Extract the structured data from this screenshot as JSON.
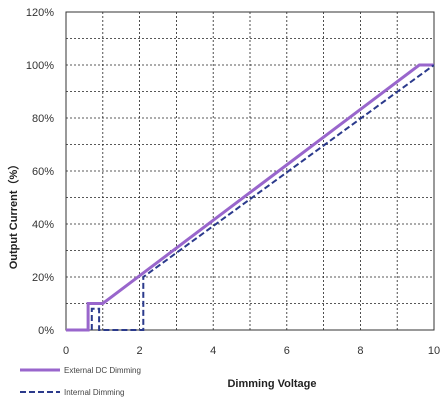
{
  "chart_data": {
    "type": "line",
    "xlabel": "Dimming Voltage",
    "ylabel": "Output Current（%）",
    "xlim": [
      0,
      10
    ],
    "ylim": [
      0,
      120
    ],
    "x_ticks": [
      "0",
      "2",
      "4",
      "6",
      "8",
      "10"
    ],
    "y_ticks": [
      "0%",
      "20%",
      "40%",
      "60%",
      "80%",
      "100%",
      "120%"
    ],
    "grid": true,
    "legend_position": "bottom-left",
    "series": [
      {
        "name": "External DC Dimming",
        "style": "solid",
        "color": "#9966CC",
        "x": [
          0,
          0.6,
          0.6,
          1.0,
          9.6,
          10
        ],
        "y": [
          0,
          0,
          10,
          10,
          100,
          100
        ]
      },
      {
        "name": "Internal Dimming",
        "style": "dashed",
        "color": "#2B3A8C",
        "x": [
          0.7,
          0.7,
          0.9,
          0.9,
          2.1,
          2.1,
          10
        ],
        "y": [
          0,
          8,
          8,
          0,
          0,
          20,
          100
        ]
      }
    ]
  }
}
